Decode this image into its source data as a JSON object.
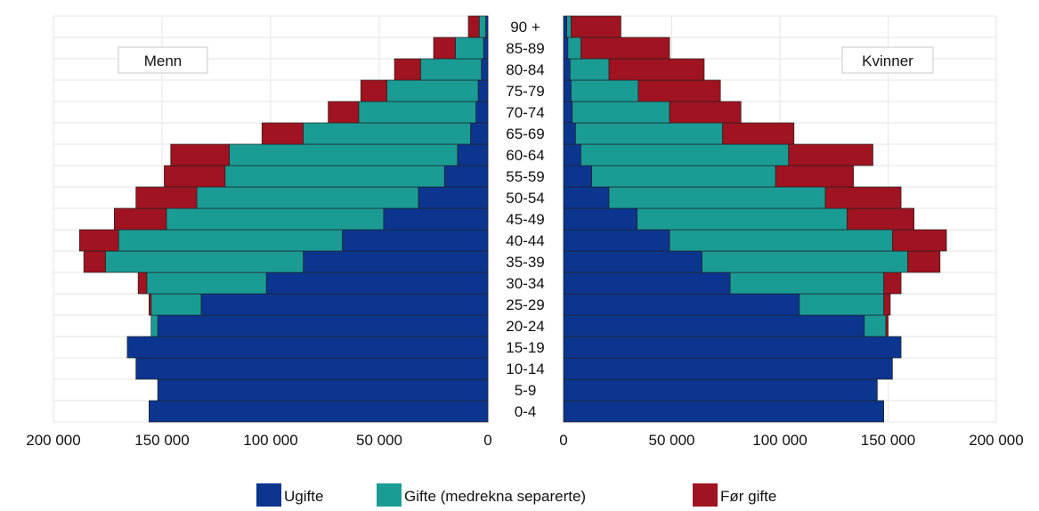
{
  "chart_data": {
    "type": "bar",
    "orientation": "horizontal-population-pyramid",
    "categories": [
      "0-4",
      "5-9",
      "10-14",
      "15-19",
      "20-24",
      "25-29",
      "30-34",
      "35-39",
      "40-44",
      "45-49",
      "50-54",
      "55-59",
      "60-64",
      "65-69",
      "70-74",
      "75-79",
      "80-84",
      "85-89",
      "90 +"
    ],
    "panels": [
      {
        "label": "Menn",
        "series": [
          {
            "name": "Ugifte",
            "values": [
              156000,
              152000,
              162000,
              166000,
              152000,
              132000,
              102000,
              85000,
              67000,
              48000,
              32000,
              20000,
              14000,
              8000,
              5500,
              4500,
              3000,
              2000,
              1000
            ]
          },
          {
            "name": "Gifte (medrekna separerte)",
            "values": [
              0,
              0,
              0,
              0,
              3000,
              23000,
              55000,
              91000,
              103000,
              100000,
              102000,
              101000,
              105000,
              77000,
              54000,
              42000,
              28000,
              13000,
              3000
            ]
          },
          {
            "name": "Før gifte",
            "values": [
              0,
              0,
              0,
              0,
              0,
              1000,
              4000,
              10000,
              18000,
              24000,
              28000,
              28000,
              27000,
              19000,
              14000,
              12000,
              12000,
              10000,
              5000
            ]
          }
        ]
      },
      {
        "label": "Kvinner",
        "series": [
          {
            "name": "Ugifte",
            "values": [
              148000,
              145000,
              152000,
              156000,
              139000,
              109000,
              77000,
              64000,
              49000,
              34000,
              21000,
              13000,
              8000,
              5500,
              4000,
              3500,
              3000,
              2000,
              1500
            ]
          },
          {
            "name": "Gifte (medrekna separerte)",
            "values": [
              0,
              0,
              0,
              0,
              10000,
              39000,
              71000,
              95000,
              103000,
              97000,
              100000,
              85000,
              96000,
              68000,
              45000,
              31000,
              18000,
              6000,
              2000
            ]
          },
          {
            "name": "Før gifte",
            "values": [
              0,
              0,
              0,
              0,
              1000,
              3000,
              8000,
              15000,
              25000,
              31000,
              35000,
              36000,
              39000,
              33000,
              33000,
              38000,
              44000,
              41000,
              23000
            ]
          }
        ]
      }
    ],
    "colors": {
      "Ugifte": "#0c3590",
      "Gifte (medrekna separerte)": "#1a9c95",
      "Før gifte": "#a01320"
    },
    "xlim": [
      0,
      200000
    ],
    "x_tick_values": [
      200000,
      150000,
      100000,
      50000,
      0
    ],
    "x_tick_labels_left": [
      "200 000",
      "150 000",
      "100 000",
      "50 000",
      "0"
    ],
    "x_tick_labels_right": [
      "0",
      "50 000",
      "100 000",
      "150 000",
      "200 000"
    ],
    "grid": true,
    "legend": "bottom",
    "legend_items": [
      "Ugifte",
      "Gifte (medrekna separerte)",
      "Før gifte"
    ]
  }
}
